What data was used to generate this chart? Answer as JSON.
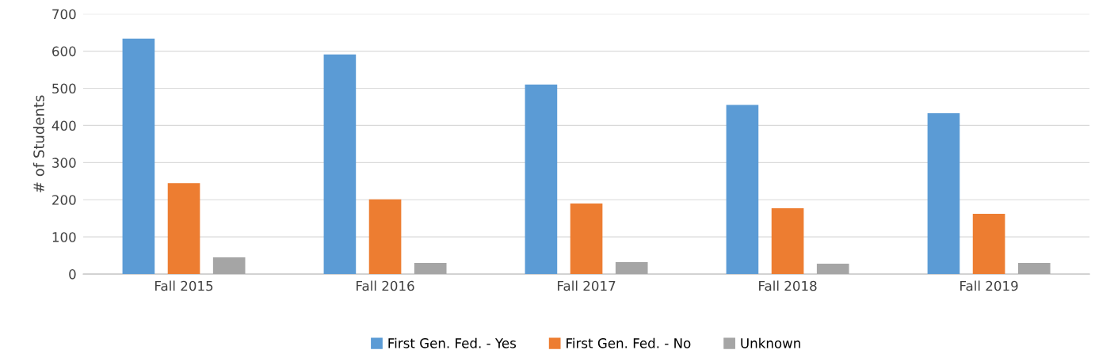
{
  "chart_data": {
    "type": "bar",
    "ylabel": "# of Students",
    "categories": [
      "Fall 2015",
      "Fall 2016",
      "Fall 2017",
      "Fall 2018",
      "Fall 2019"
    ],
    "series": [
      {
        "name": "First Gen. Fed. - Yes",
        "color": "#5b9bd5",
        "values": [
          634,
          591,
          510,
          455,
          433
        ]
      },
      {
        "name": "First Gen. Fed. - No",
        "color": "#ed7d31",
        "values": [
          245,
          201,
          190,
          177,
          162
        ]
      },
      {
        "name": "Unknown",
        "color": "#a5a5a5",
        "values": [
          45,
          30,
          32,
          28,
          30
        ]
      }
    ],
    "ylim": [
      0,
      700
    ],
    "yticks": [
      0,
      100,
      200,
      300,
      400,
      500,
      600,
      700
    ],
    "grid": "y",
    "legend": "bottom"
  }
}
